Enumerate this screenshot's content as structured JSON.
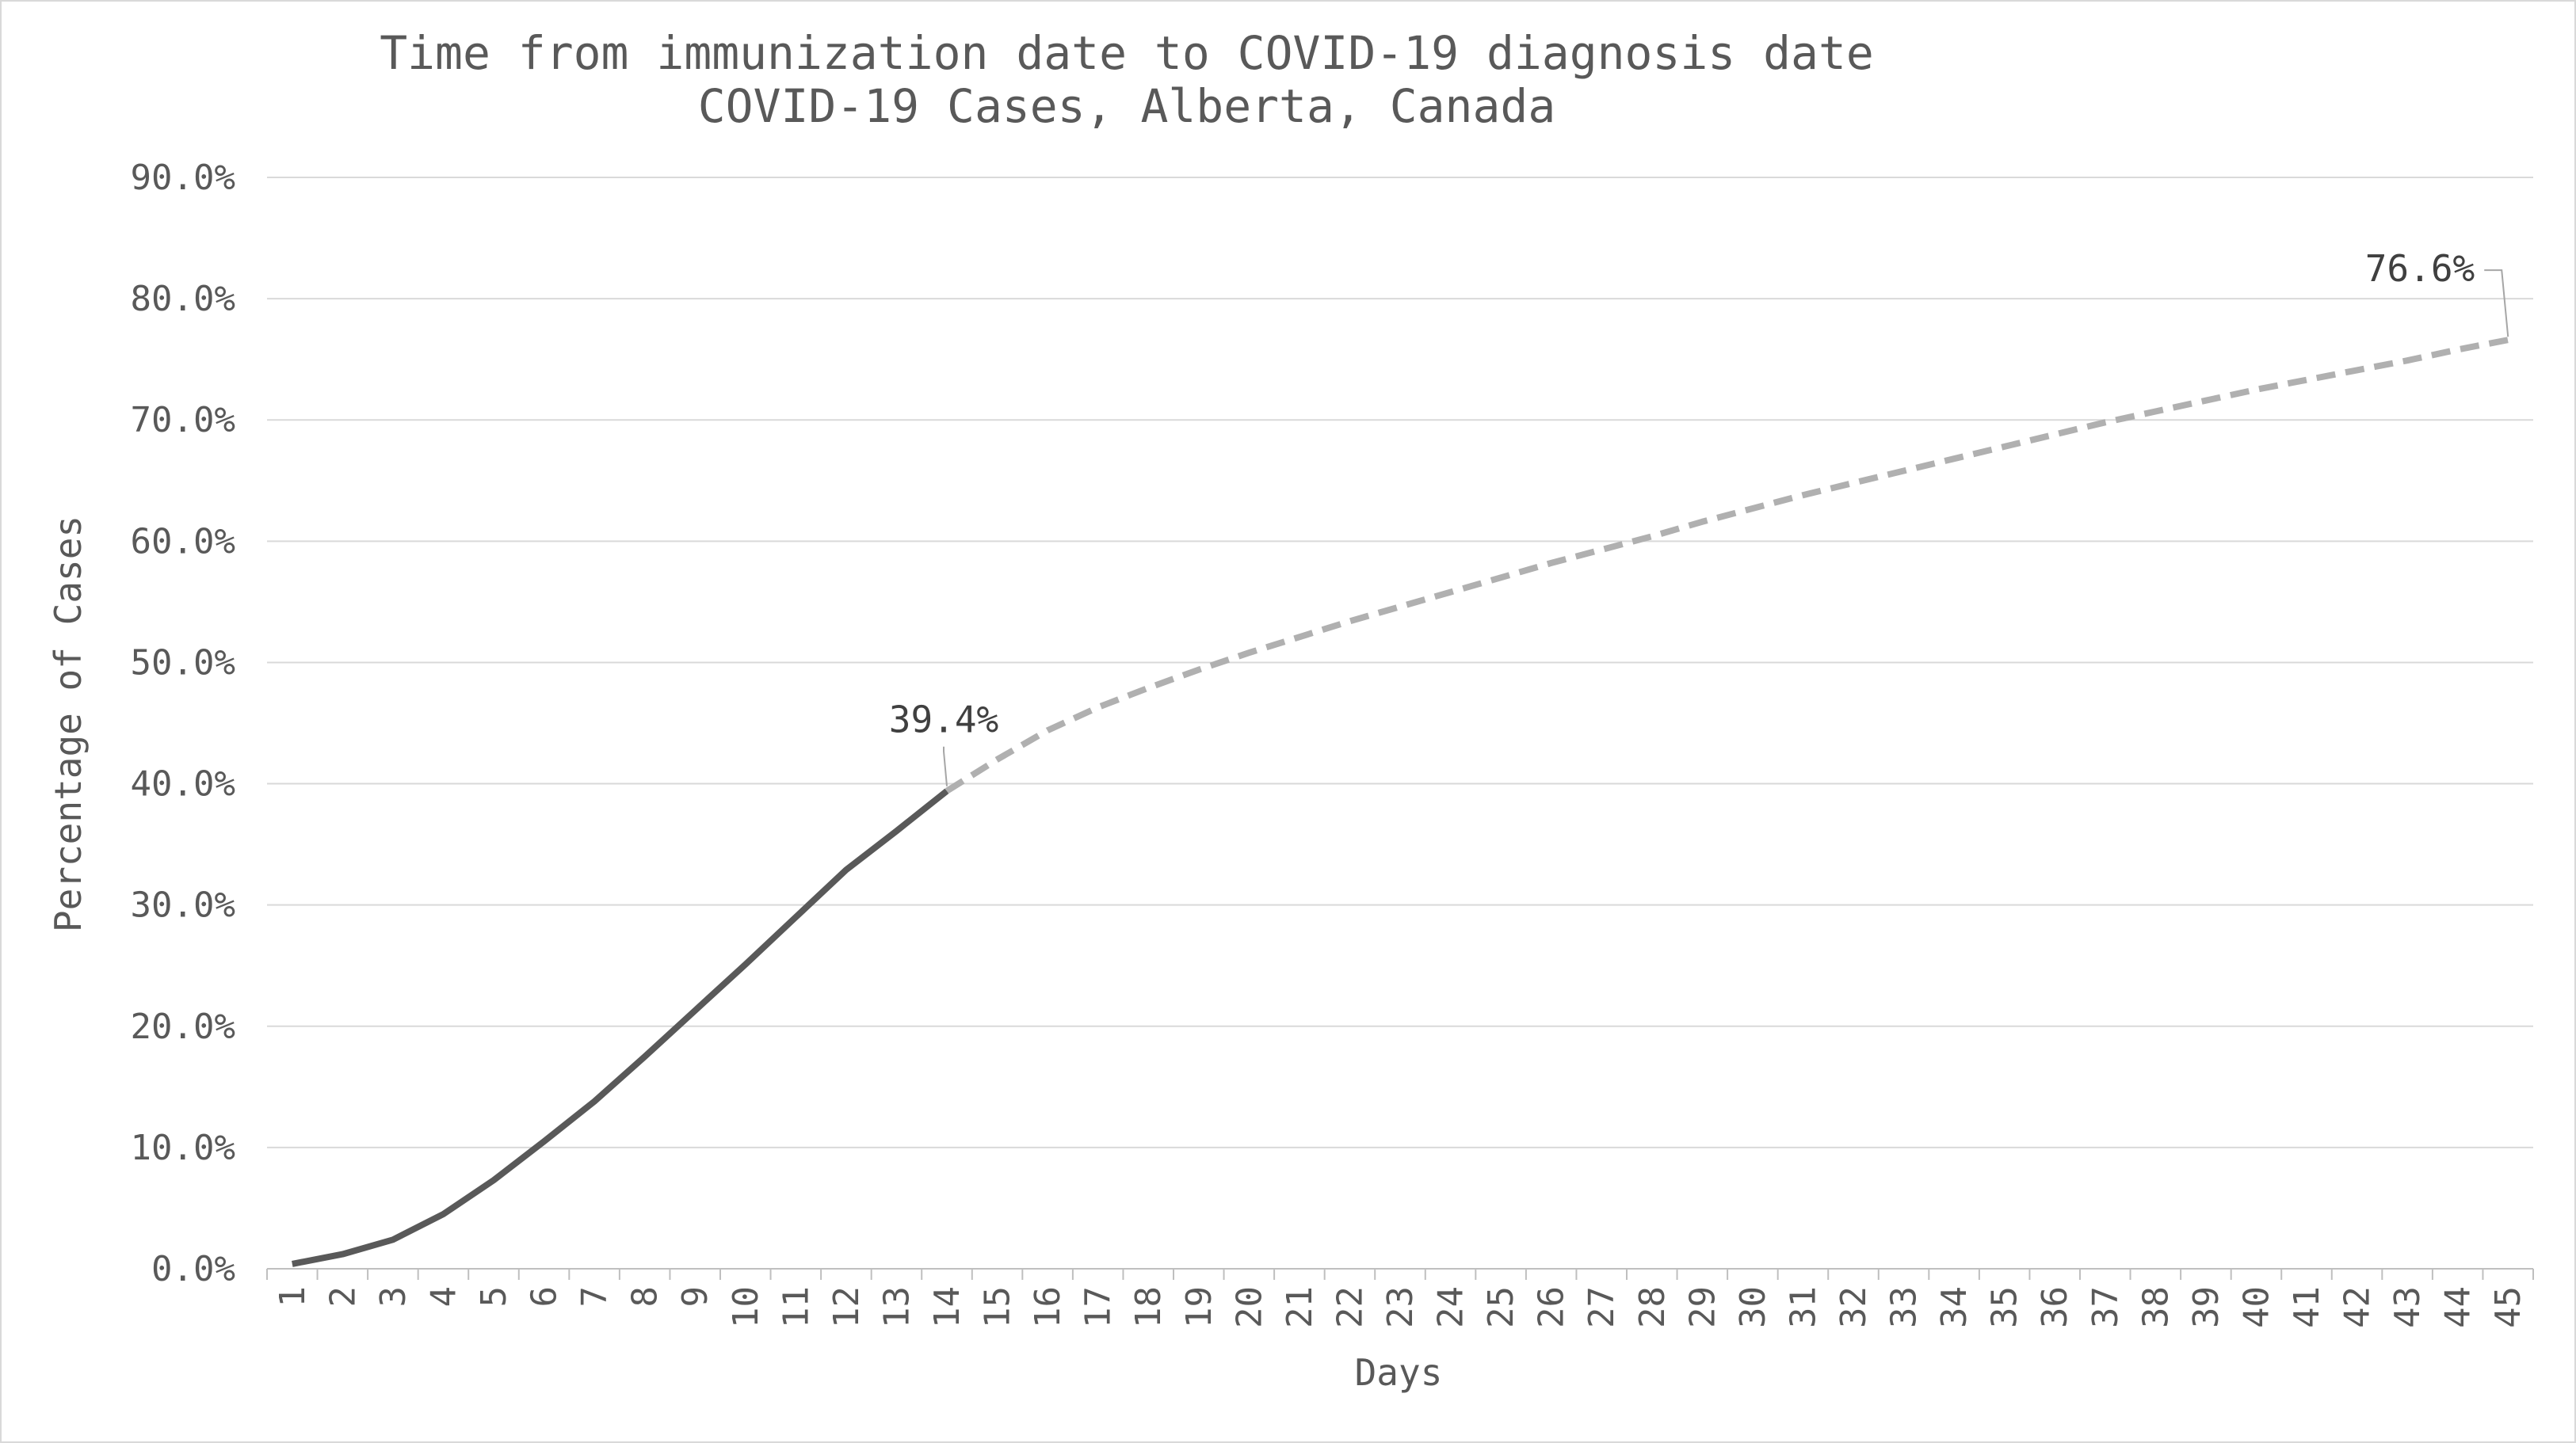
{
  "chart_data": {
    "type": "line",
    "title": "Time from immunization date to COVID-19 diagnosis date",
    "subtitle": "COVID-19 Cases, Alberta, Canada",
    "xlabel": "Days",
    "ylabel": "Percentage of Cases",
    "ylim": [
      0,
      90
    ],
    "y_ticks": [
      "0.0%",
      "10.0%",
      "20.0%",
      "30.0%",
      "40.0%",
      "50.0%",
      "60.0%",
      "70.0%",
      "80.0%",
      "90.0%"
    ],
    "grid": true,
    "legend": "none",
    "x": [
      1,
      2,
      3,
      4,
      5,
      6,
      7,
      8,
      9,
      10,
      11,
      12,
      13,
      14,
      15,
      16,
      17,
      18,
      19,
      20,
      21,
      22,
      23,
      24,
      25,
      26,
      27,
      28,
      29,
      30,
      31,
      32,
      33,
      34,
      35,
      36,
      37,
      38,
      39,
      40,
      41,
      42,
      43,
      44,
      45
    ],
    "series": [
      {
        "style": "solid",
        "color": "#595959",
        "x": [
          1,
          2,
          3,
          4,
          5,
          6,
          7,
          8,
          9,
          10,
          11,
          12,
          13,
          14
        ],
        "values": [
          0.4,
          1.2,
          2.4,
          4.5,
          7.3,
          10.5,
          13.8,
          17.5,
          21.3,
          25.1,
          29.0,
          32.9,
          36.1,
          39.4
        ]
      },
      {
        "style": "dashed",
        "color": "#b0b0b0",
        "x": [
          14,
          15,
          16,
          17,
          18,
          19,
          20,
          21,
          22,
          23,
          24,
          25,
          26,
          27,
          28,
          29,
          30,
          31,
          32,
          33,
          34,
          35,
          36,
          37,
          38,
          39,
          40,
          41,
          42,
          43,
          44,
          45
        ],
        "values": [
          39.4,
          42.0,
          44.4,
          46.3,
          47.9,
          49.4,
          50.8,
          52.1,
          53.4,
          54.6,
          55.8,
          57.0,
          58.2,
          59.3,
          60.4,
          61.6,
          62.7,
          63.8,
          64.8,
          65.8,
          66.8,
          67.8,
          68.8,
          69.8,
          70.7,
          71.6,
          72.5,
          73.3,
          74.1,
          74.9,
          75.8,
          76.6
        ]
      }
    ],
    "annotations": [
      {
        "text": "39.4%",
        "x": 14,
        "y": 39.4
      },
      {
        "text": "76.6%",
        "x": 45,
        "y": 76.6
      }
    ]
  }
}
